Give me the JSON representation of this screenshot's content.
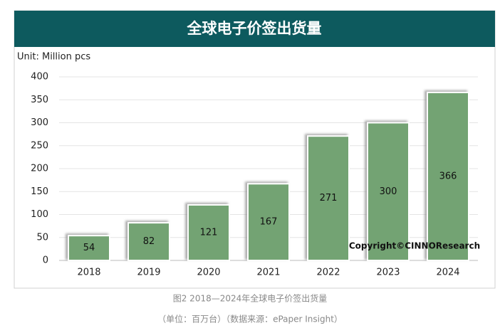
{
  "chart_data": {
    "type": "bar",
    "title": "全球电子价签出货量",
    "y_label": "Unit: Million pcs",
    "categories": [
      "2018",
      "2019",
      "2020",
      "2021",
      "2022",
      "2023",
      "2024"
    ],
    "values": [
      54,
      82,
      121,
      167,
      271,
      300,
      366
    ],
    "color": "#73a373",
    "ylim": [
      0,
      400
    ],
    "yticks": [
      0,
      50,
      100,
      150,
      200,
      250,
      300,
      350,
      400
    ],
    "grid": true,
    "annotation": "Copyright©CINNOResearch",
    "captions": [
      "图2 2018—2024年全球电子价签出货量",
      "（单位：百万台）（数据来源：ePaper Insight）"
    ]
  }
}
